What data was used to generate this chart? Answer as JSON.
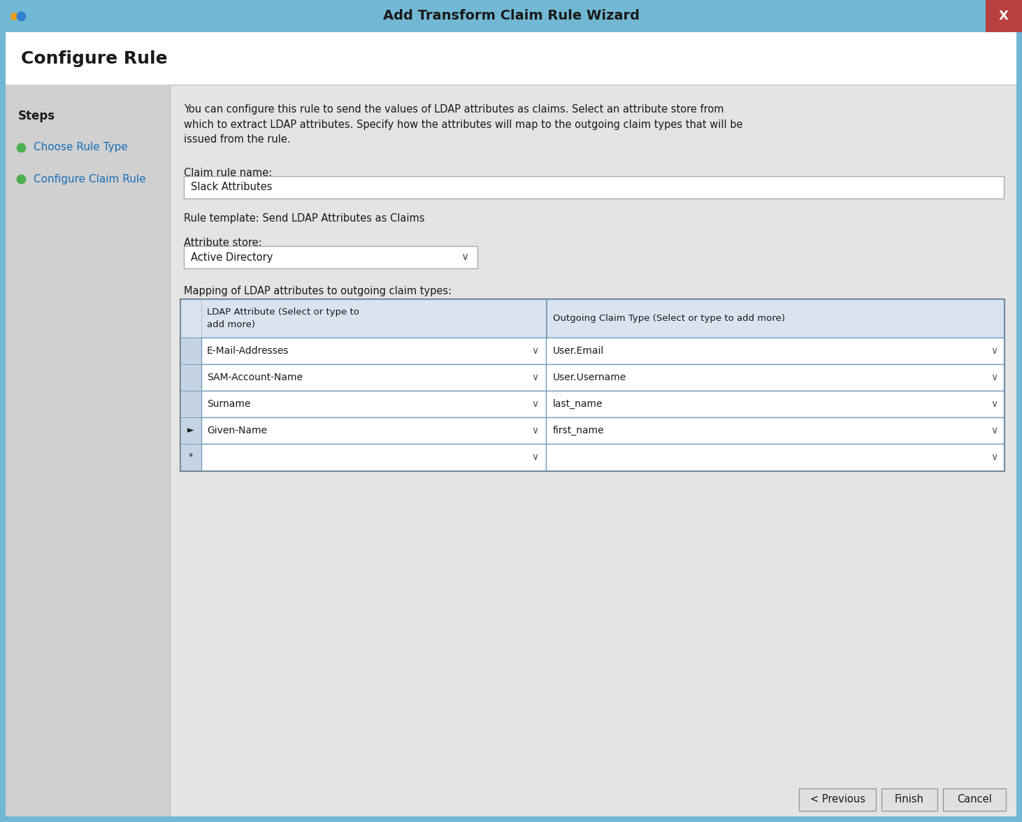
{
  "title": "Add Transform Claim Rule Wizard",
  "title_bg": "#72b8d4",
  "title_fg": "#1a1a1a",
  "close_btn_color": "#b94040",
  "close_btn_text": "X",
  "header_title": "Configure Rule",
  "steps_label": "Steps",
  "steps": [
    "Choose Rule Type",
    "Configure Claim Rule"
  ],
  "desc_line1": "You can configure this rule to send the values of LDAP attributes as claims. Select an attribute store from",
  "desc_line2": "which to extract LDAP attributes. Specify how the attributes will map to the outgoing claim types that will be",
  "desc_line3": "issued from the rule.",
  "claim_rule_name_label": "Claim rule name:",
  "claim_rule_name_value": "Slack Attributes",
  "rule_template_label": "Rule template: Send LDAP Attributes as Claims",
  "attribute_store_label": "Attribute store:",
  "attribute_store_value": "Active Directory",
  "mapping_label": "Mapping of LDAP attributes to outgoing claim types:",
  "table_col1_header_line1": "LDAP Attribute (Select or type to",
  "table_col1_header_line2": "add more)",
  "table_col2_header": "Outgoing Claim Type (Select or type to add more)",
  "table_rows": [
    {
      "marker": "",
      "ldap": "E-Mail-Addresses",
      "claim": "User.Email"
    },
    {
      "marker": "",
      "ldap": "SAM-Account-Name",
      "claim": "User.Username"
    },
    {
      "marker": "",
      "ldap": "Surname",
      "claim": "last_name"
    },
    {
      "marker": "►",
      "ldap": "Given-Name",
      "claim": "first_name"
    },
    {
      "marker": "*",
      "ldap": "",
      "claim": ""
    }
  ],
  "btn_previous": "< Previous",
  "btn_finish": "Finish",
  "btn_cancel": "Cancel",
  "outer_bg": "#72b8d4",
  "inner_bg": "#e4e4e4",
  "left_panel_bg": "#d0d0d0",
  "white": "#ffffff",
  "table_header_bg": "#dae4f0",
  "table_row_bg": "#ffffff",
  "table_border_color": "#7a9fbd",
  "table_sep_col_bg": "#c4d4e4",
  "step_active_color": "#1a6eb5",
  "step_bullet_color": "#4caf50",
  "text_color": "#1a1a1a",
  "btn_bg": "#e0e0e0",
  "btn_border": "#999999",
  "input_border": "#aaaaaa",
  "header_white_bg": "#ffffff",
  "outer_border": "#5a9ab8"
}
